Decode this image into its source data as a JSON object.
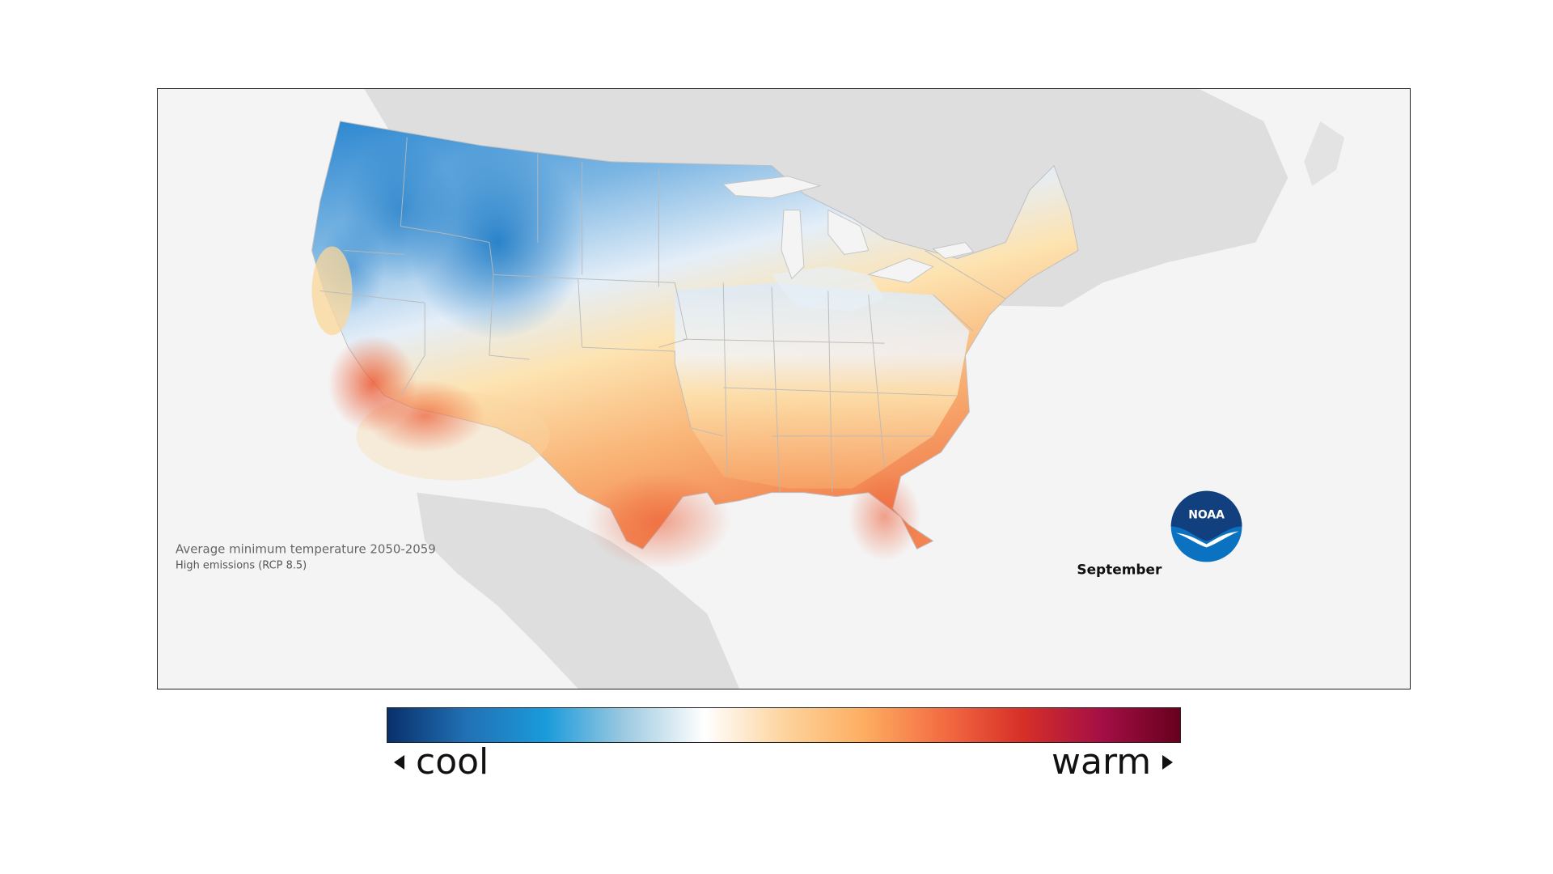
{
  "map": {
    "caption_title": "Average minimum temperature 2050-2059",
    "caption_subtitle": "High emissions (RCP 8.5)",
    "month": "September",
    "logo_text": "NOAA",
    "colors": {
      "background": "#f4f4f4",
      "land_outside": "#dedede",
      "cool_strong": "#1b7fcb",
      "cool_light": "#b9d5ee",
      "neutral": "#f4f6f9",
      "warm_light": "#fcd392",
      "warm_mid": "#f9a463",
      "warm_strong": "#ee6a3e",
      "noaa_blue": "#0a72c1",
      "noaa_navy": "#123f7d"
    }
  },
  "legend": {
    "cool_label": "cool",
    "warm_label": "warm",
    "gradient_stops": [
      "#08306b",
      "#2171b5",
      "#1a9bdb",
      "#9ecae1",
      "#ffffff",
      "#fdd49e",
      "#fdae61",
      "#f46d43",
      "#d73027",
      "#a50f45",
      "#67001f"
    ]
  }
}
